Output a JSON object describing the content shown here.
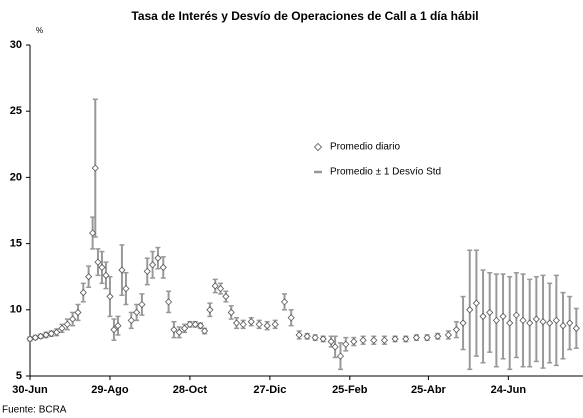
{
  "chart_data": {
    "type": "errorbar",
    "title": "Tasa de Interés y Desvío de Operaciones de Call a 1 día hábil",
    "y_unit": "%",
    "source": "Fuente: BCRA",
    "xlim": [
      0,
      415
    ],
    "xticks": [
      {
        "value": 0,
        "label": "30-Jun"
      },
      {
        "value": 60,
        "label": "29-Ago"
      },
      {
        "value": 120,
        "label": "28-Oct"
      },
      {
        "value": 180,
        "label": "27-Dic"
      },
      {
        "value": 240,
        "label": "25-Feb"
      },
      {
        "value": 299,
        "label": "25-Abr"
      },
      {
        "value": 359,
        "label": "24-Jun"
      }
    ],
    "ylim": [
      5,
      30
    ],
    "yticks": [
      5,
      10,
      15,
      20,
      25,
      30
    ],
    "legend_position": "center",
    "series": [
      {
        "name": "Promedio diario",
        "error_label": "Promedio ± 1 Desvío Std",
        "color": "#999999",
        "marker_color": "#ffffff",
        "x": [
          0,
          4,
          8,
          12,
          16,
          20,
          24,
          28,
          32,
          36,
          40,
          44,
          47,
          49,
          51,
          54,
          57,
          60,
          63,
          66,
          69,
          72,
          76,
          80,
          84,
          88,
          92,
          96,
          100,
          104,
          108,
          112,
          116,
          120,
          124,
          128,
          131,
          135,
          139,
          143,
          147,
          151,
          155,
          160,
          166,
          172,
          178,
          184,
          191,
          196,
          202,
          208,
          214,
          220,
          226,
          229,
          233,
          237,
          243,
          250,
          258,
          266,
          274,
          282,
          290,
          298,
          306,
          314,
          320,
          325,
          330,
          335,
          340,
          345,
          350,
          355,
          360,
          365,
          370,
          375,
          380,
          385,
          390,
          395,
          400,
          405,
          410
        ],
        "values": [
          7.8,
          7.9,
          8.0,
          8.1,
          8.2,
          8.3,
          8.6,
          8.9,
          9.3,
          9.8,
          11.3,
          12.5,
          15.8,
          20.7,
          13.6,
          13.2,
          12.6,
          11.0,
          8.5,
          8.8,
          13.0,
          11.6,
          9.2,
          9.8,
          10.4,
          12.9,
          13.4,
          13.9,
          13.2,
          10.6,
          8.5,
          8.3,
          8.6,
          8.9,
          8.9,
          8.8,
          8.4,
          10.0,
          11.8,
          11.6,
          11.0,
          9.8,
          9.0,
          8.9,
          9.1,
          8.9,
          8.8,
          8.9,
          10.6,
          9.4,
          8.1,
          8.0,
          7.9,
          7.8,
          7.6,
          7.2,
          6.5,
          7.4,
          7.6,
          7.7,
          7.7,
          7.7,
          7.8,
          7.8,
          7.9,
          7.9,
          8.0,
          8.1,
          8.5,
          9.0,
          10.0,
          10.5,
          9.5,
          9.8,
          9.2,
          9.5,
          9.0,
          9.6,
          9.2,
          9.0,
          9.3,
          9.1,
          9.0,
          9.2,
          8.8,
          9.0,
          8.6
        ],
        "errors": [
          0.15,
          0.15,
          0.15,
          0.2,
          0.2,
          0.25,
          0.3,
          0.4,
          0.5,
          0.6,
          0.7,
          0.8,
          1.2,
          5.2,
          1.0,
          1.2,
          1.0,
          1.5,
          0.8,
          0.7,
          1.9,
          1.2,
          0.6,
          0.6,
          0.8,
          1.0,
          1.0,
          0.8,
          0.8,
          0.8,
          0.6,
          0.4,
          0.3,
          0.2,
          0.2,
          0.2,
          0.2,
          0.5,
          0.5,
          0.4,
          0.4,
          0.5,
          0.4,
          0.3,
          0.3,
          0.3,
          0.3,
          0.3,
          0.6,
          0.6,
          0.3,
          0.2,
          0.2,
          0.2,
          0.4,
          0.8,
          1.0,
          0.5,
          0.3,
          0.3,
          0.3,
          0.3,
          0.2,
          0.2,
          0.2,
          0.2,
          0.2,
          0.3,
          0.6,
          2.0,
          4.5,
          4.0,
          3.5,
          3.0,
          3.5,
          3.2,
          3.5,
          3.2,
          3.5,
          3.3,
          3.2,
          3.5,
          3.0,
          3.4,
          2.5,
          2.0,
          1.5
        ]
      }
    ]
  }
}
